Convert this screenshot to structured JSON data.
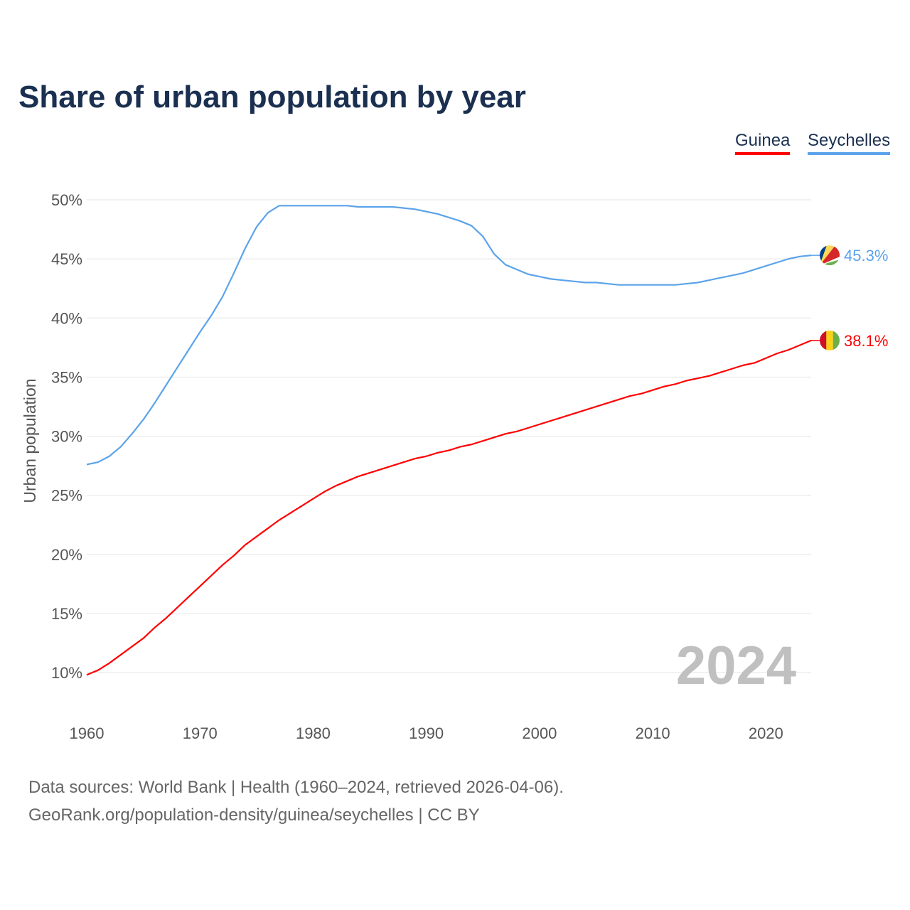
{
  "chart_data": {
    "type": "line",
    "title": "Share of urban population by year",
    "xlabel": "",
    "ylabel": "Urban population",
    "xlim": [
      1960,
      2024
    ],
    "ylim": [
      10,
      50
    ],
    "x_ticks": [
      "1960",
      "1970",
      "1980",
      "1990",
      "2000",
      "2010",
      "2020"
    ],
    "y_ticks": [
      "10%",
      "15%",
      "20%",
      "25%",
      "30%",
      "35%",
      "40%",
      "45%",
      "50%"
    ],
    "grid": true,
    "legend_position": "top-right",
    "year_watermark": "2024",
    "x": [
      1960,
      1961,
      1962,
      1963,
      1964,
      1965,
      1966,
      1967,
      1968,
      1969,
      1970,
      1971,
      1972,
      1973,
      1974,
      1975,
      1976,
      1977,
      1978,
      1979,
      1980,
      1981,
      1982,
      1983,
      1984,
      1985,
      1986,
      1987,
      1988,
      1989,
      1990,
      1991,
      1992,
      1993,
      1994,
      1995,
      1996,
      1997,
      1998,
      1999,
      2000,
      2001,
      2002,
      2003,
      2004,
      2005,
      2006,
      2007,
      2008,
      2009,
      2010,
      2011,
      2012,
      2013,
      2014,
      2015,
      2016,
      2017,
      2018,
      2019,
      2020,
      2021,
      2022,
      2023,
      2024
    ],
    "series": [
      {
        "name": "Guinea",
        "color": "#ff0000",
        "end_label": "38.1%",
        "values": [
          9.8,
          10.2,
          10.8,
          11.5,
          12.2,
          12.9,
          13.8,
          14.6,
          15.5,
          16.4,
          17.3,
          18.2,
          19.1,
          19.9,
          20.8,
          21.5,
          22.2,
          22.9,
          23.5,
          24.1,
          24.7,
          25.3,
          25.8,
          26.2,
          26.6,
          26.9,
          27.2,
          27.5,
          27.8,
          28.1,
          28.3,
          28.6,
          28.8,
          29.1,
          29.3,
          29.6,
          29.9,
          30.2,
          30.4,
          30.7,
          31.0,
          31.3,
          31.6,
          31.9,
          32.2,
          32.5,
          32.8,
          33.1,
          33.4,
          33.6,
          33.9,
          34.2,
          34.4,
          34.7,
          34.9,
          35.1,
          35.4,
          35.7,
          36.0,
          36.2,
          36.6,
          37.0,
          37.3,
          37.7,
          38.1
        ]
      },
      {
        "name": "Seychelles",
        "color": "#5ba3ea",
        "end_label": "45.3%",
        "values": [
          27.6,
          27.8,
          28.3,
          29.1,
          30.2,
          31.4,
          32.8,
          34.3,
          35.8,
          37.3,
          38.8,
          40.2,
          41.8,
          43.8,
          45.9,
          47.7,
          48.9,
          49.5,
          49.5,
          49.5,
          49.5,
          49.5,
          49.5,
          49.5,
          49.4,
          49.4,
          49.4,
          49.4,
          49.3,
          49.2,
          49.0,
          48.8,
          48.5,
          48.2,
          47.8,
          46.9,
          45.4,
          44.5,
          44.1,
          43.7,
          43.5,
          43.3,
          43.2,
          43.1,
          43.0,
          43.0,
          42.9,
          42.8,
          42.8,
          42.8,
          42.8,
          42.8,
          42.8,
          42.9,
          43.0,
          43.2,
          43.4,
          43.6,
          43.8,
          44.1,
          44.4,
          44.7,
          45.0,
          45.2,
          45.3
        ]
      }
    ]
  },
  "source_line1": "Data sources: World Bank | Health (1960–2024, retrieved 2026-04-06).",
  "source_line2": "GeoRank.org/population-density/guinea/seychelles | CC BY"
}
